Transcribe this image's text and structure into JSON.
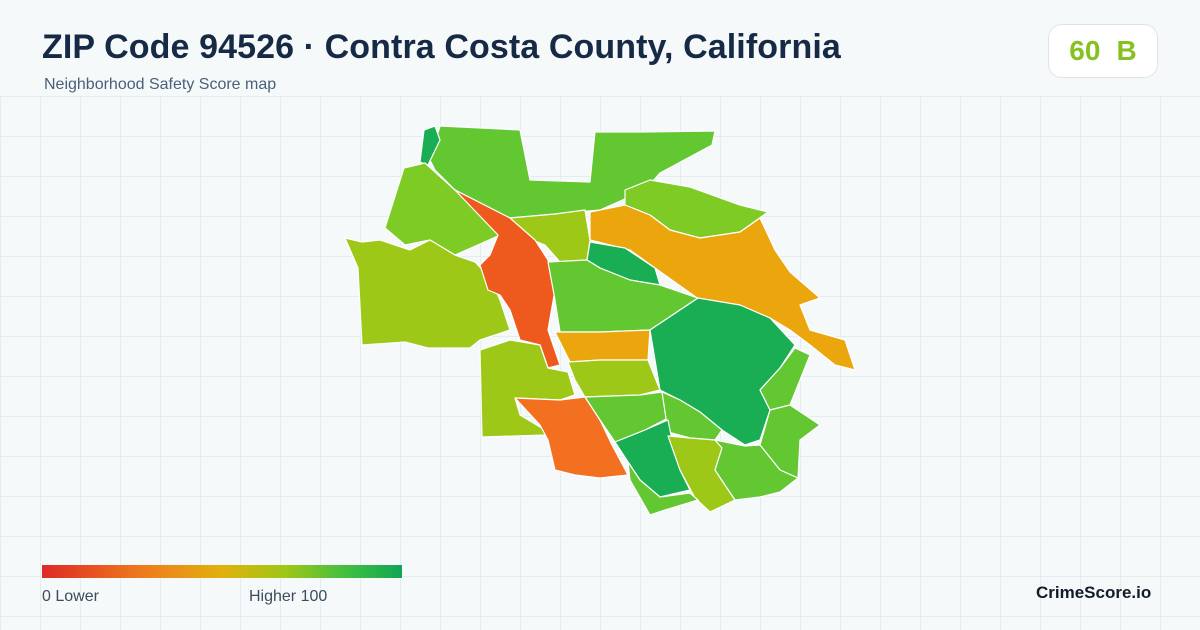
{
  "header": {
    "title": "ZIP Code 94526 · Contra Costa County, California",
    "subtitle": "Neighborhood Safety Score map"
  },
  "score": {
    "value": "60",
    "grade": "B",
    "color": "#86c21f"
  },
  "legend": {
    "low_label": "0  Lower",
    "high_label": "Higher  100",
    "colors": [
      "#dd2a26",
      "#ee7b1d",
      "#e2b10d",
      "#9cc716",
      "#3fbe42",
      "#12a556"
    ]
  },
  "brand": "CrimeScore.io",
  "map": {
    "region_colors": {
      "dark_green": "#1aae54",
      "green": "#62c731",
      "yellow_green": "#9ec817",
      "light_green": "#7ecb25",
      "orange": "#eaa60c",
      "red_orange": "#ee5a1e",
      "orange_red": "#f2701f"
    }
  }
}
